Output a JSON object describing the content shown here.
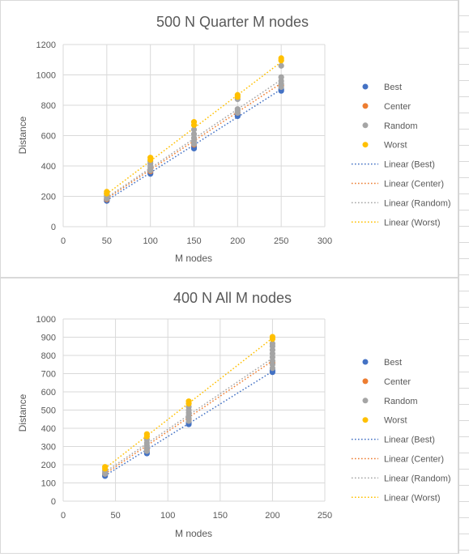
{
  "chart_data": [
    {
      "type": "scatter",
      "title": "500 N Quarter M nodes",
      "xlabel": "M nodes",
      "ylabel": "Distance",
      "xlim": [
        0,
        300
      ],
      "ylim": [
        0,
        1200
      ],
      "x_ticks": [
        0,
        50,
        100,
        150,
        200,
        250,
        300
      ],
      "y_ticks": [
        0,
        200,
        400,
        600,
        800,
        1000,
        1200
      ],
      "grid": true,
      "legend_position": "right",
      "series": [
        {
          "name": "Best",
          "color": "#4472C4",
          "x": [
            50,
            50,
            100,
            100,
            150,
            150,
            200,
            200,
            250,
            250
          ],
          "y": [
            170,
            178,
            348,
            356,
            515,
            525,
            728,
            738,
            895,
            905
          ]
        },
        {
          "name": "Center",
          "color": "#ED7D31",
          "x": [
            50,
            100,
            150,
            200,
            250
          ],
          "y": [
            180,
            365,
            540,
            750,
            930
          ]
        },
        {
          "name": "Random",
          "color": "#A5A5A5",
          "x": [
            50,
            50,
            50,
            50,
            100,
            100,
            100,
            100,
            100,
            150,
            150,
            150,
            150,
            150,
            200,
            200,
            200,
            200,
            250,
            250,
            250,
            250,
            250
          ],
          "y": [
            185,
            195,
            205,
            215,
            370,
            385,
            400,
            415,
            430,
            545,
            565,
            585,
            610,
            640,
            750,
            765,
            775,
            840,
            920,
            940,
            960,
            985,
            1060
          ]
        },
        {
          "name": "Worst",
          "color": "#FFC000",
          "x": [
            50,
            50,
            100,
            100,
            150,
            150,
            200,
            200,
            250,
            250
          ],
          "y": [
            218,
            230,
            440,
            455,
            670,
            690,
            855,
            868,
            1095,
            1110
          ]
        }
      ],
      "trendlines": [
        {
          "name": "Linear (Best)",
          "color": "#4472C4",
          "x": [
            50,
            250
          ],
          "y": [
            173,
            905
          ]
        },
        {
          "name": "Linear (Center)",
          "color": "#ED7D31",
          "x": [
            50,
            250
          ],
          "y": [
            185,
            945
          ]
        },
        {
          "name": "Linear (Random)",
          "color": "#A5A5A5",
          "x": [
            50,
            250
          ],
          "y": [
            192,
            968
          ]
        },
        {
          "name": "Linear (Worst)",
          "color": "#FFC000",
          "x": [
            50,
            250
          ],
          "y": [
            215,
            1085
          ]
        }
      ]
    },
    {
      "type": "scatter",
      "title": "400 N All M nodes",
      "xlabel": "M nodes",
      "ylabel": "Distance",
      "xlim": [
        0,
        250
      ],
      "ylim": [
        0,
        1000
      ],
      "x_ticks": [
        0,
        50,
        100,
        150,
        200,
        250
      ],
      "y_ticks": [
        0,
        100,
        200,
        300,
        400,
        500,
        600,
        700,
        800,
        900,
        1000
      ],
      "grid": true,
      "legend_position": "right",
      "series": [
        {
          "name": "Best",
          "color": "#4472C4",
          "x": [
            40,
            40,
            80,
            80,
            120,
            120,
            200,
            200
          ],
          "y": [
            138,
            145,
            262,
            270,
            422,
            430,
            708,
            718
          ]
        },
        {
          "name": "Center",
          "color": "#ED7D31",
          "x": [
            40,
            80,
            120,
            200
          ],
          "y": [
            150,
            285,
            450,
            760
          ]
        },
        {
          "name": "Random",
          "color": "#A5A5A5",
          "x": [
            40,
            40,
            40,
            80,
            80,
            80,
            80,
            80,
            120,
            120,
            120,
            120,
            120,
            120,
            200,
            200,
            200,
            200,
            200,
            200,
            200,
            200
          ],
          "y": [
            150,
            158,
            166,
            275,
            290,
            305,
            320,
            338,
            440,
            455,
            470,
            485,
            500,
            518,
            730,
            750,
            770,
            790,
            810,
            830,
            850,
            865
          ]
        },
        {
          "name": "Worst",
          "color": "#FFC000",
          "x": [
            40,
            40,
            80,
            80,
            120,
            120,
            200,
            200
          ],
          "y": [
            178,
            188,
            355,
            368,
            535,
            548,
            890,
            902
          ]
        }
      ],
      "trendlines": [
        {
          "name": "Linear (Best)",
          "color": "#4472C4",
          "x": [
            40,
            200
          ],
          "y": [
            140,
            712
          ]
        },
        {
          "name": "Linear (Center)",
          "color": "#ED7D31",
          "x": [
            40,
            200
          ],
          "y": [
            150,
            770
          ]
        },
        {
          "name": "Linear (Random)",
          "color": "#A5A5A5",
          "x": [
            40,
            200
          ],
          "y": [
            160,
            785
          ]
        },
        {
          "name": "Linear (Worst)",
          "color": "#FFC000",
          "x": [
            40,
            200
          ],
          "y": [
            180,
            895
          ]
        }
      ]
    }
  ]
}
